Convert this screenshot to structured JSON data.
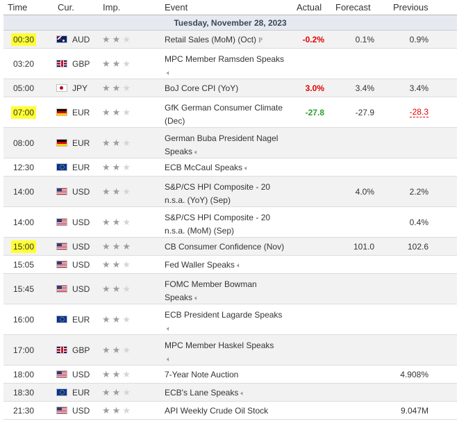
{
  "header": {
    "time": "Time",
    "currency": "Cur.",
    "importance": "Imp.",
    "event": "Event",
    "actual": "Actual",
    "forecast": "Forecast",
    "previous": "Previous"
  },
  "date_label": "Tuesday, November 28, 2023",
  "colors": {
    "highlight": "#ffff33",
    "negative": "#e10000",
    "positive": "#2e9d2e",
    "date_row_bg": "#e6eaf0"
  },
  "rows": [
    {
      "time": "00:30",
      "highlight": true,
      "flag": "australia-flag",
      "currency": "AUD",
      "stars": 2,
      "event_line1": "Retail Sales (MoM) (Oct)",
      "event_line2": "",
      "icon": "preliminary-icon",
      "actual": "-0.2%",
      "actual_color": "negative",
      "forecast": "0.1%",
      "previous": "0.9%",
      "previous_color": "",
      "lines": 1
    },
    {
      "time": "03:20",
      "highlight": false,
      "flag": "uk-flag",
      "currency": "GBP",
      "stars": 2,
      "event_line1": "MPC Member Ramsden Speaks",
      "event_line2": "",
      "icon": "speaker-icon",
      "icon_on_line2": true,
      "actual": "",
      "forecast": "",
      "previous": "",
      "lines": 2
    },
    {
      "time": "05:00",
      "highlight": false,
      "flag": "japan-flag",
      "currency": "JPY",
      "stars": 2,
      "event_line1": "BoJ Core CPI (YoY)",
      "event_line2": "",
      "icon": "",
      "actual": "3.0%",
      "actual_color": "negative",
      "forecast": "3.4%",
      "previous": "3.4%",
      "lines": 1
    },
    {
      "time": "07:00",
      "highlight": true,
      "flag": "germany-flag",
      "currency": "EUR",
      "stars": 2,
      "event_line1": "GfK German Consumer Climate",
      "event_line2": "(Dec)",
      "icon": "",
      "actual": "-27.8",
      "actual_color": "positive",
      "forecast": "-27.9",
      "previous": "-28.3",
      "previous_color": "negative",
      "lines": 2
    },
    {
      "time": "08:00",
      "highlight": false,
      "flag": "germany-flag",
      "currency": "EUR",
      "stars": 2,
      "event_line1": "German Buba President Nagel",
      "event_line2": "Speaks",
      "icon": "speaker-icon",
      "actual": "",
      "forecast": "",
      "previous": "",
      "lines": 2
    },
    {
      "time": "12:30",
      "highlight": false,
      "flag": "eu-flag",
      "currency": "EUR",
      "stars": 2,
      "event_line1": "ECB McCaul Speaks",
      "event_line2": "",
      "icon": "speaker-icon",
      "actual": "",
      "forecast": "",
      "previous": "",
      "lines": 1
    },
    {
      "time": "14:00",
      "highlight": false,
      "flag": "us-flag",
      "currency": "USD",
      "stars": 2,
      "event_line1": "S&P/CS HPI Composite - 20",
      "event_line2": "n.s.a. (YoY) (Sep)",
      "icon": "",
      "actual": "",
      "forecast": "4.0%",
      "previous": "2.2%",
      "lines": 2
    },
    {
      "time": "14:00",
      "highlight": false,
      "flag": "us-flag",
      "currency": "USD",
      "stars": 2,
      "event_line1": "S&P/CS HPI Composite - 20",
      "event_line2": "n.s.a. (MoM) (Sep)",
      "icon": "",
      "actual": "",
      "forecast": "",
      "previous": "0.4%",
      "lines": 2
    },
    {
      "time": "15:00",
      "highlight": true,
      "flag": "us-flag",
      "currency": "USD",
      "stars": 3,
      "event_line1": "CB Consumer Confidence (Nov)",
      "event_line2": "",
      "icon": "",
      "actual": "",
      "forecast": "101.0",
      "previous": "102.6",
      "lines": 1
    },
    {
      "time": "15:05",
      "highlight": false,
      "flag": "us-flag",
      "currency": "USD",
      "stars": 2,
      "event_line1": "Fed Waller Speaks",
      "event_line2": "",
      "icon": "speaker-icon",
      "actual": "",
      "forecast": "",
      "previous": "",
      "lines": 1
    },
    {
      "time": "15:45",
      "highlight": false,
      "flag": "us-flag",
      "currency": "USD",
      "stars": 2,
      "event_line1": "FOMC Member Bowman",
      "event_line2": "Speaks",
      "icon": "speaker-icon",
      "actual": "",
      "forecast": "",
      "previous": "",
      "lines": 2
    },
    {
      "time": "16:00",
      "highlight": false,
      "flag": "eu-flag",
      "currency": "EUR",
      "stars": 2,
      "event_line1": "ECB President Lagarde Speaks",
      "event_line2": "",
      "icon": "speaker-icon",
      "icon_on_line2": true,
      "actual": "",
      "forecast": "",
      "previous": "",
      "lines": 2
    },
    {
      "time": "17:00",
      "highlight": false,
      "flag": "uk-flag",
      "currency": "GBP",
      "stars": 2,
      "event_line1": "MPC Member Haskel Speaks",
      "event_line2": "",
      "icon": "speaker-icon",
      "icon_on_line2": true,
      "actual": "",
      "forecast": "",
      "previous": "",
      "lines": 2
    },
    {
      "time": "18:00",
      "highlight": false,
      "flag": "us-flag",
      "currency": "USD",
      "stars": 2,
      "event_line1": "7-Year Note Auction",
      "event_line2": "",
      "icon": "",
      "actual": "",
      "forecast": "",
      "previous": "4.908%",
      "lines": 1
    },
    {
      "time": "18:30",
      "highlight": false,
      "flag": "eu-flag",
      "currency": "EUR",
      "stars": 2,
      "event_line1": "ECB's Lane Speaks",
      "event_line2": "",
      "icon": "speaker-icon",
      "actual": "",
      "forecast": "",
      "previous": "",
      "lines": 1
    },
    {
      "time": "21:30",
      "highlight": false,
      "flag": "us-flag",
      "currency": "USD",
      "stars": 2,
      "event_line1": "API Weekly Crude Oil Stock",
      "event_line2": "",
      "icon": "",
      "actual": "",
      "forecast": "",
      "previous": "9.047M",
      "lines": 1
    }
  ]
}
